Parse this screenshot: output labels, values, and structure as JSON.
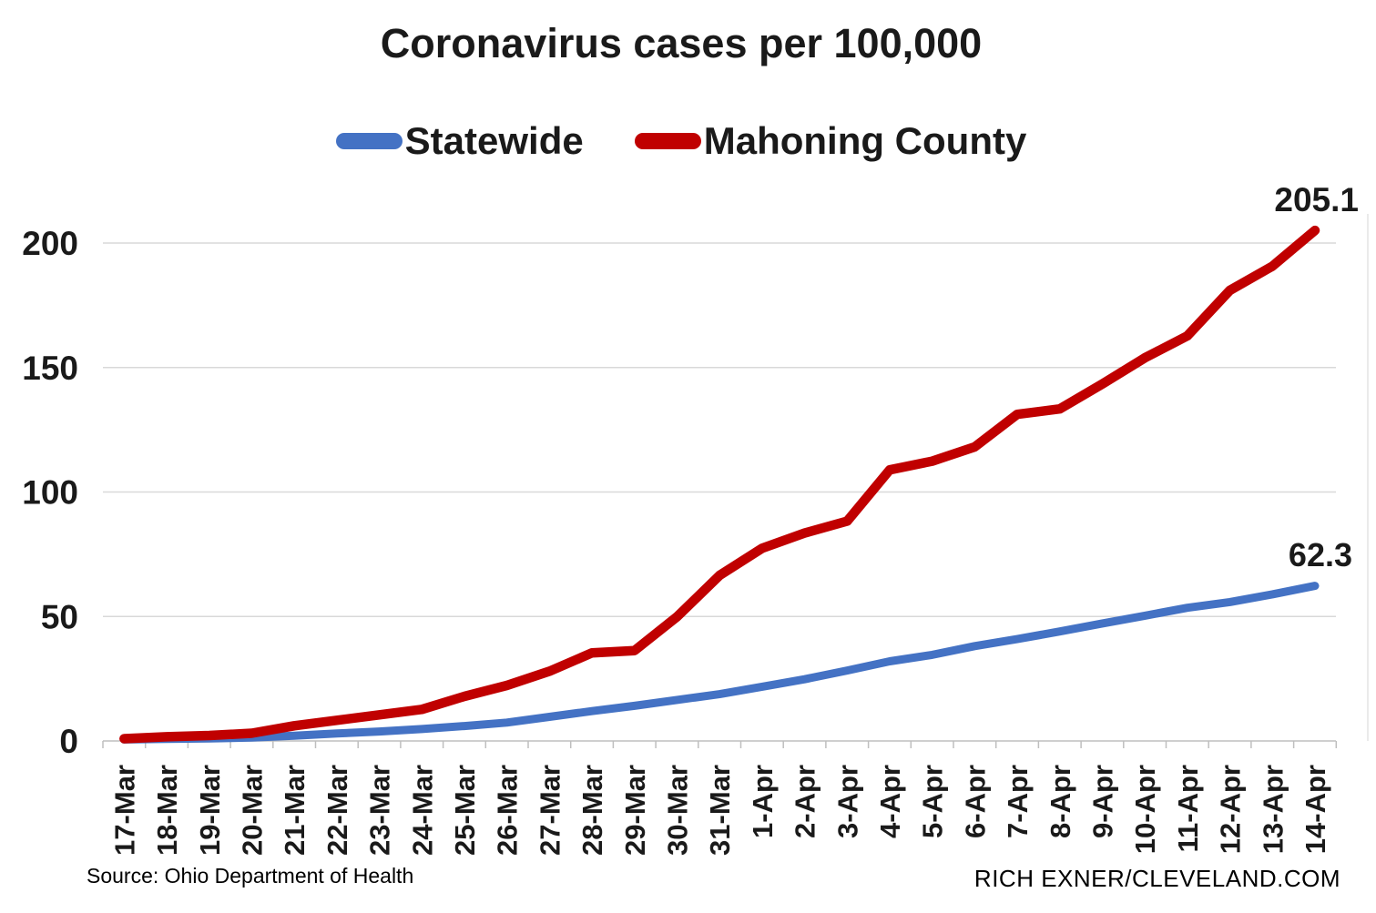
{
  "title": "Coronavirus cases per 100,000",
  "footer": {
    "source": "Source: Ohio Department of Health",
    "credit": "RICH EXNER/CLEVELAND.COM"
  },
  "colors": {
    "statewide": "#4472C4",
    "mahoning": "#C00000",
    "gridline": "#D9D9D9",
    "axis": "#BFBFBF",
    "right_border": "#E4E4E4",
    "text": "#1A1A1A",
    "background": "#FFFFFF"
  },
  "chart_data": {
    "type": "line",
    "title": "Coronavirus cases per 100,000",
    "xlabel": "",
    "ylabel": "",
    "grid": true,
    "legend_position": "top",
    "ylim": [
      0,
      220
    ],
    "yticks": [
      0,
      50,
      100,
      150,
      200
    ],
    "categories": [
      "17-Mar",
      "18-Mar",
      "19-Mar",
      "20-Mar",
      "21-Mar",
      "22-Mar",
      "23-Mar",
      "24-Mar",
      "25-Mar",
      "26-Mar",
      "27-Mar",
      "28-Mar",
      "29-Mar",
      "30-Mar",
      "31-Mar",
      "1-Apr",
      "2-Apr",
      "3-Apr",
      "4-Apr",
      "5-Apr",
      "6-Apr",
      "7-Apr",
      "8-Apr",
      "9-Apr",
      "10-Apr",
      "11-Apr",
      "12-Apr",
      "13-Apr",
      "14-Apr"
    ],
    "series": [
      {
        "name": "Statewide",
        "color": "#4472C4",
        "end_label": "62.3",
        "values": [
          0.6,
          0.8,
          1.0,
          1.4,
          2.1,
          3.0,
          3.8,
          4.8,
          6.0,
          7.4,
          9.7,
          12.0,
          14.1,
          16.5,
          18.8,
          21.8,
          24.8,
          28.3,
          32.0,
          34.6,
          38.1,
          40.9,
          44.0,
          47.2,
          50.3,
          53.5,
          55.8,
          58.9,
          62.3
        ]
      },
      {
        "name": "Mahoning County",
        "color": "#C00000",
        "end_label": "205.1",
        "values": [
          0.9,
          1.7,
          2.2,
          3.1,
          6.1,
          8.3,
          10.5,
          12.7,
          17.9,
          22.3,
          28.0,
          35.4,
          36.3,
          49.9,
          66.5,
          77.4,
          83.5,
          88.3,
          108.9,
          112.4,
          118.1,
          131.2,
          133.4,
          143.4,
          153.9,
          162.7,
          181.0,
          190.7,
          205.1
        ]
      }
    ]
  }
}
